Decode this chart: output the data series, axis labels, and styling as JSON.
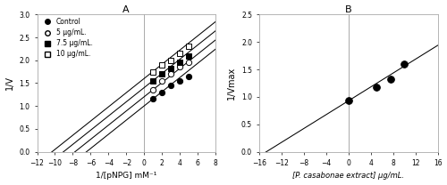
{
  "panel_A": {
    "title": "A",
    "xlabel": "1/[pNPG] mM⁻¹",
    "ylabel": "1/V",
    "xlim": [
      -12,
      8
    ],
    "ylim": [
      0,
      3
    ],
    "xticks": [
      -12,
      -10,
      -8,
      -6,
      -4,
      -2,
      0,
      2,
      4,
      6,
      8
    ],
    "yticks": [
      0,
      0.5,
      1.0,
      1.5,
      2.0,
      2.5,
      3.0
    ],
    "vline_x": 0,
    "series": [
      {
        "label": "Control",
        "marker": "o",
        "filled": true,
        "data_x": [
          1,
          2,
          3,
          4,
          5
        ],
        "data_y": [
          1.15,
          1.3,
          1.45,
          1.55,
          1.65
        ],
        "line_slope": 0.155,
        "line_intercept": 1.0
      },
      {
        "label": "5 μg/mL.",
        "marker": "o",
        "filled": false,
        "data_x": [
          1,
          2,
          3,
          4,
          5
        ],
        "data_y": [
          1.35,
          1.55,
          1.7,
          1.85,
          1.95
        ],
        "line_slope": 0.155,
        "line_intercept": 1.2
      },
      {
        "label": "7.5 μg/mL.",
        "marker": "s",
        "filled": true,
        "data_x": [
          1,
          2,
          3,
          4,
          5
        ],
        "data_y": [
          1.55,
          1.7,
          1.82,
          1.95,
          2.1
        ],
        "line_slope": 0.155,
        "line_intercept": 1.4
      },
      {
        "label": "10 μg/mL.",
        "marker": "s",
        "filled": false,
        "data_x": [
          1,
          2,
          3,
          4,
          5
        ],
        "data_y": [
          1.75,
          1.9,
          2.0,
          2.15,
          2.3
        ],
        "line_slope": 0.155,
        "line_intercept": 1.6
      }
    ]
  },
  "panel_B": {
    "title": "B",
    "xlabel": "[P. casabonae extract] μg/mL.",
    "ylabel": "1/Vmax",
    "xlim": [
      -16,
      16
    ],
    "ylim": [
      0,
      2.5
    ],
    "xticks": [
      -16,
      -12,
      -8,
      -4,
      0,
      4,
      8,
      12,
      16
    ],
    "yticks": [
      0,
      0.5,
      1.0,
      1.5,
      2.0,
      2.5
    ],
    "vline_x": 0,
    "data_x": [
      0,
      5,
      7.5,
      10
    ],
    "data_y": [
      0.93,
      1.18,
      1.33,
      1.6
    ],
    "line_x_start": -15,
    "line_x_end": 16,
    "line_slope": 0.063,
    "line_intercept": 0.93
  },
  "bg_color": "#ffffff",
  "spine_color": "#aaaaaa"
}
